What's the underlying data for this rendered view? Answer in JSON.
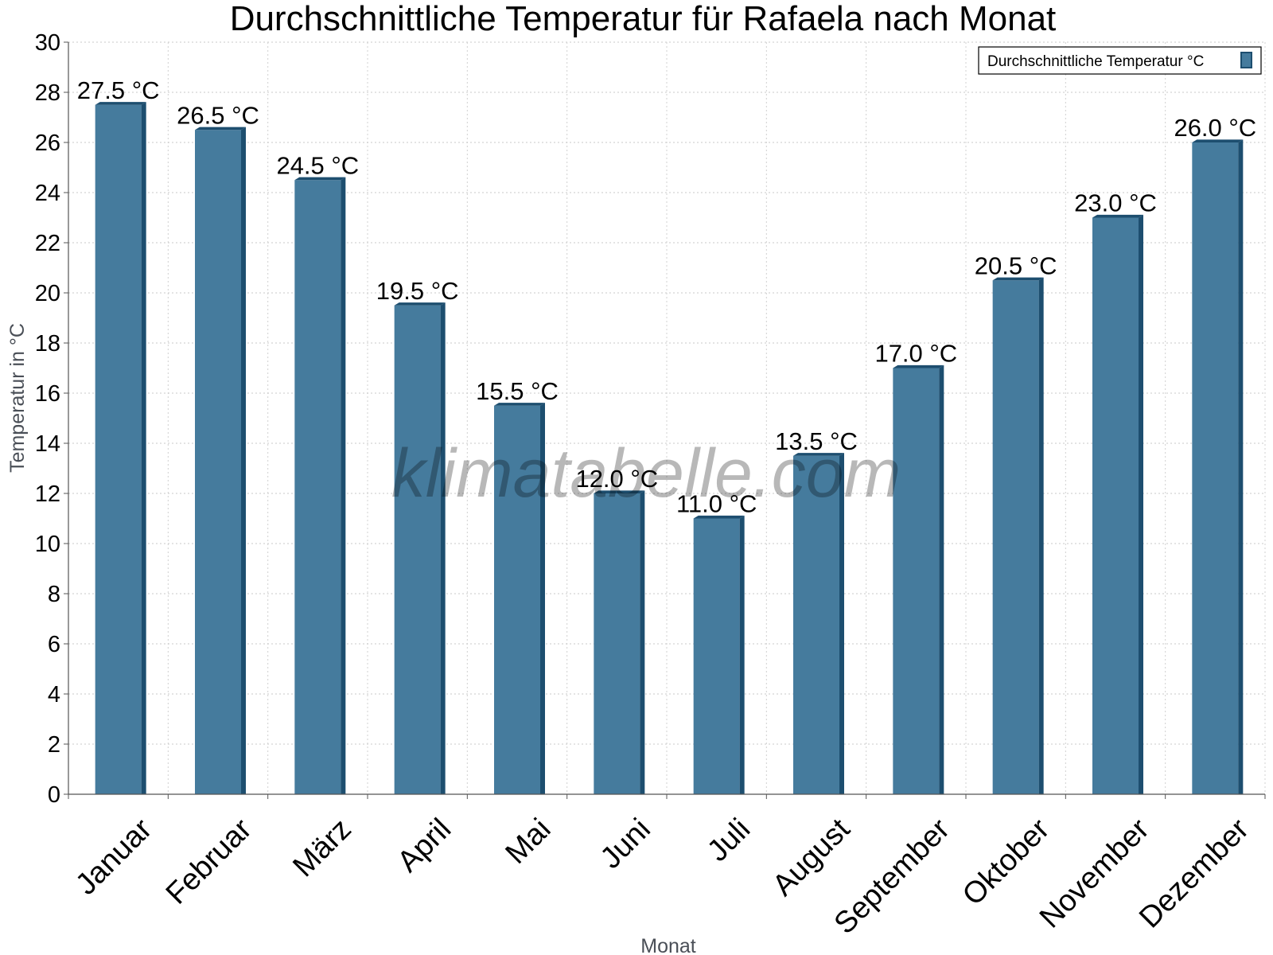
{
  "chart_data": {
    "type": "bar",
    "title": "Durchschnittliche Temperatur für Rafaela nach Monat",
    "xlabel": "Monat",
    "ylabel": "Temperatur in °C",
    "ylim": [
      0,
      30
    ],
    "ytick_step": 2,
    "grid": true,
    "legend_position": "top-right",
    "watermark": "klimatabelle.com",
    "value_unit": " °C",
    "categories": [
      "Januar",
      "Februar",
      "März",
      "April",
      "Mai",
      "Juni",
      "Juli",
      "August",
      "September",
      "Oktober",
      "November",
      "Dezember"
    ],
    "series": [
      {
        "name": "Durchschnittliche Temperatur °C",
        "color": "#457b9d",
        "edge_color": "#1d4e6f",
        "values": [
          27.5,
          26.5,
          24.5,
          19.5,
          15.5,
          12.0,
          11.0,
          13.5,
          17.0,
          20.5,
          23.0,
          26.0
        ]
      }
    ]
  }
}
